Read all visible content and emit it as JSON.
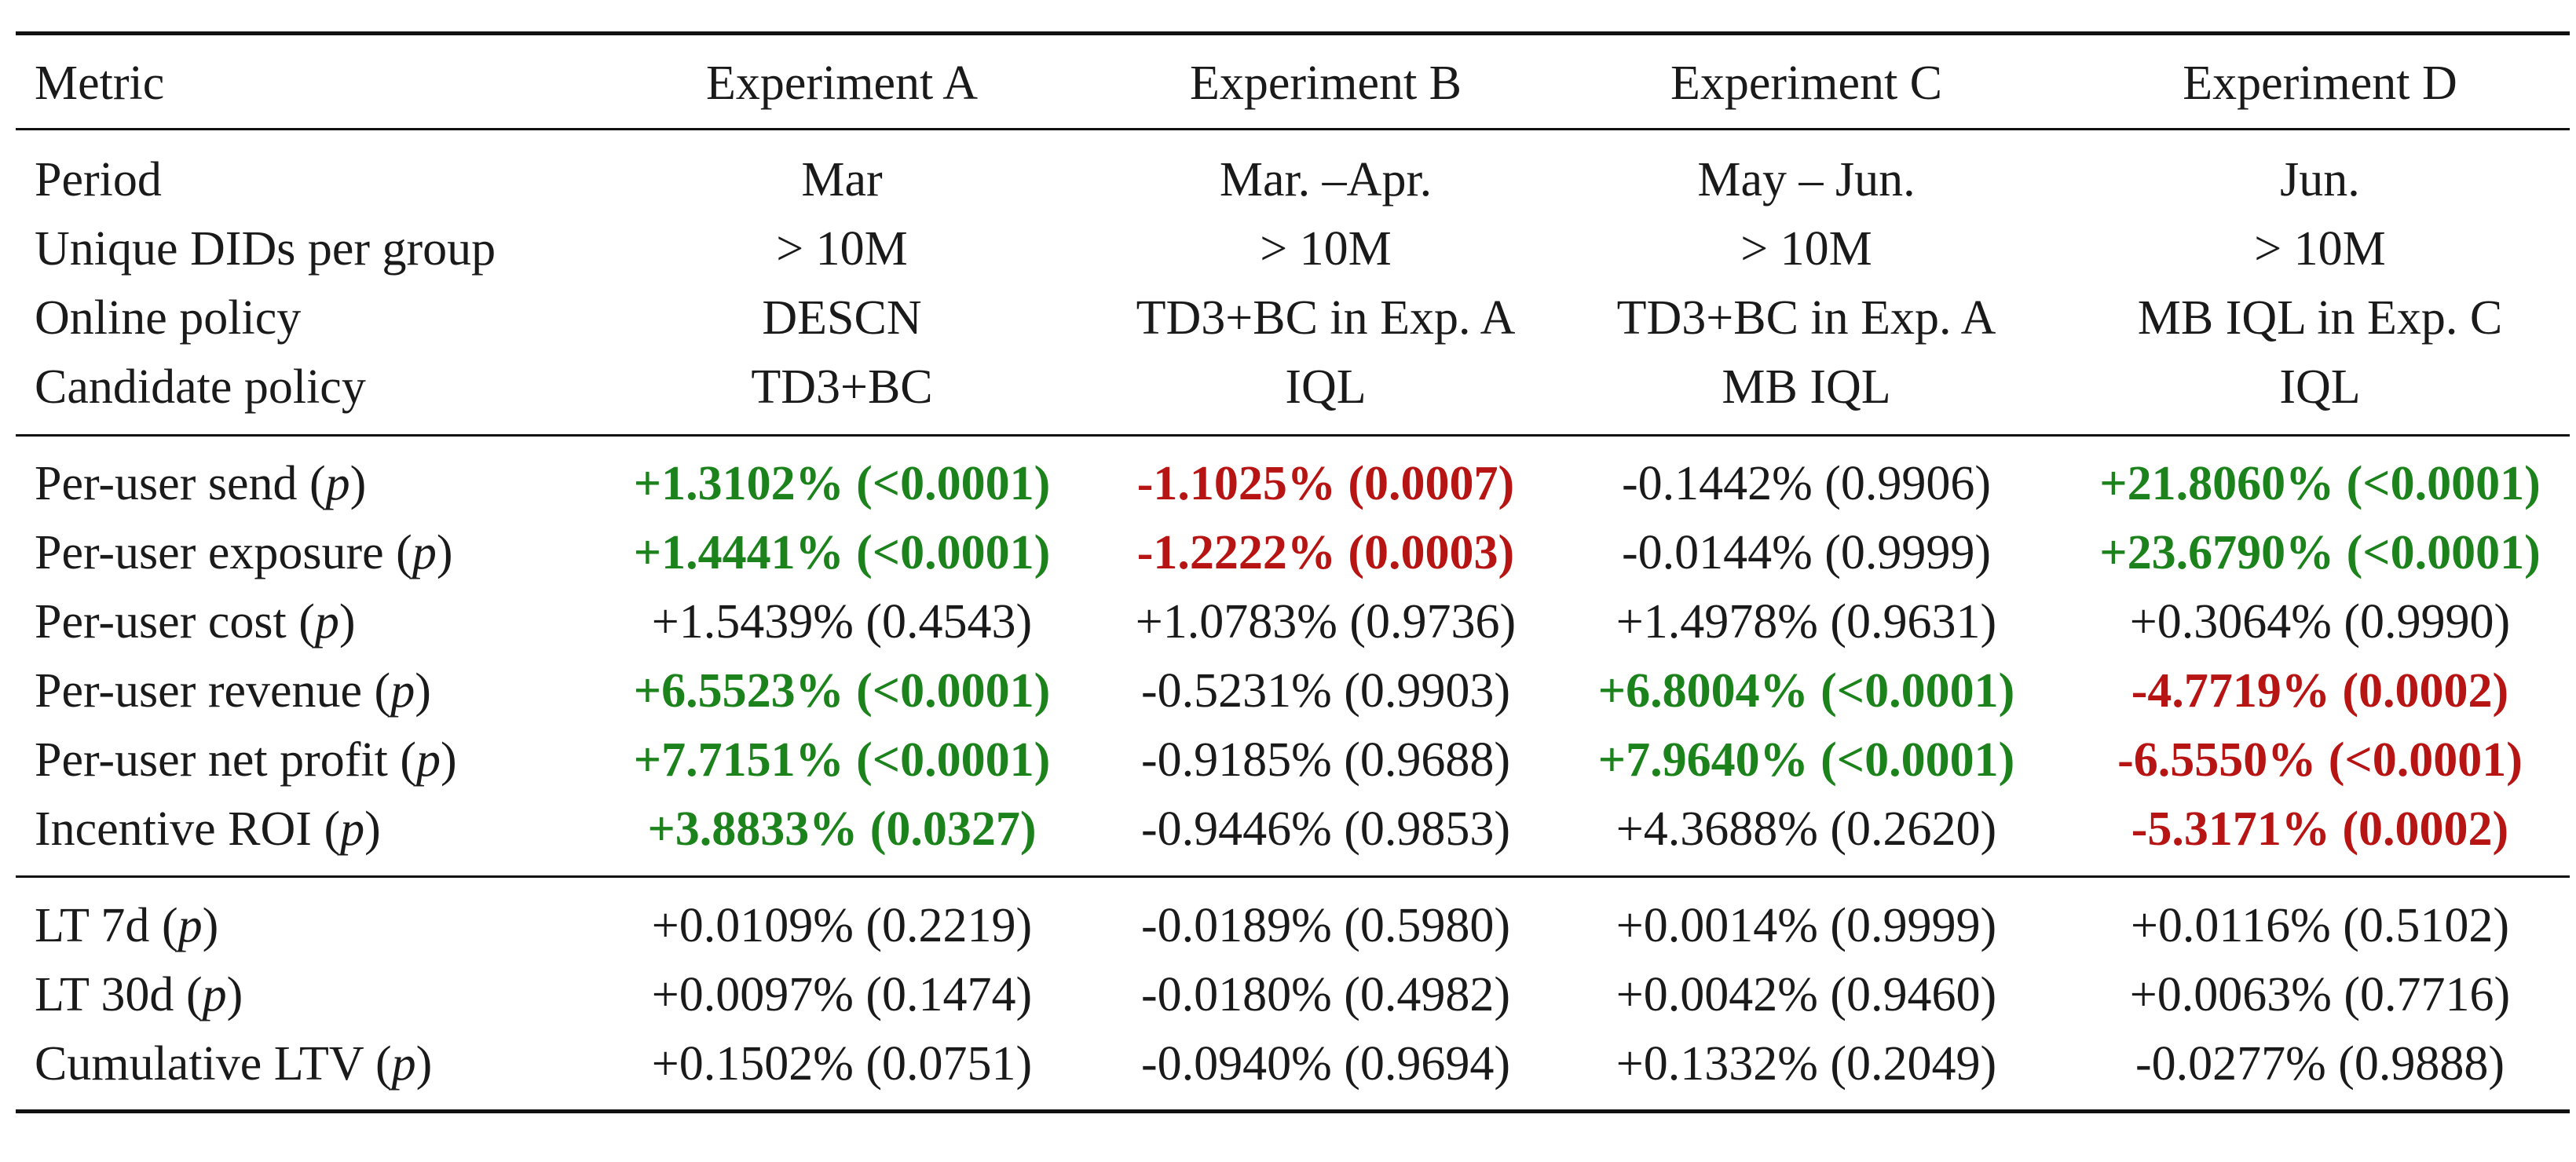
{
  "header": {
    "metric": "Metric",
    "columns": [
      "Experiment A",
      "Experiment B",
      "Experiment C",
      "Experiment D"
    ]
  },
  "setup": [
    {
      "label": "Period",
      "values": [
        "Mar",
        "Mar. –Apr.",
        "May – Jun.",
        "Jun."
      ]
    },
    {
      "label": "Unique DIDs per group",
      "values": [
        "> 10M",
        "> 10M",
        "> 10M",
        "> 10M"
      ]
    },
    {
      "label": "Online policy",
      "values": [
        "DESCN",
        "TD3+BC in Exp. A",
        "TD3+BC in Exp. A",
        "MB IQL in Exp. C"
      ]
    },
    {
      "label": "Candidate policy",
      "values": [
        "TD3+BC",
        "IQL",
        "MB IQL",
        "IQL"
      ]
    }
  ],
  "short_term": [
    {
      "label": "Per-user send",
      "p": "p",
      "cells": [
        {
          "text": "+1.3102% (<0.0001)",
          "status": "pos"
        },
        {
          "text": "-1.1025% (0.0007)",
          "status": "neg"
        },
        {
          "text": "-0.1442% (0.9906)",
          "status": "neu"
        },
        {
          "text": "+21.8060% (<0.0001)",
          "status": "pos"
        }
      ]
    },
    {
      "label": "Per-user exposure",
      "p": "p",
      "cells": [
        {
          "text": "+1.4441% (<0.0001)",
          "status": "pos"
        },
        {
          "text": "-1.2222% (0.0003)",
          "status": "neg"
        },
        {
          "text": "-0.0144% (0.9999)",
          "status": "neu"
        },
        {
          "text": "+23.6790% (<0.0001)",
          "status": "pos"
        }
      ]
    },
    {
      "label": "Per-user cost",
      "p": "p",
      "cells": [
        {
          "text": "+1.5439% (0.4543)",
          "status": "neu"
        },
        {
          "text": "+1.0783% (0.9736)",
          "status": "neu"
        },
        {
          "text": "+1.4978% (0.9631)",
          "status": "neu"
        },
        {
          "text": "+0.3064% (0.9990)",
          "status": "neu"
        }
      ]
    },
    {
      "label": "Per-user revenue",
      "p": "p",
      "cells": [
        {
          "text": "+6.5523% (<0.0001)",
          "status": "pos"
        },
        {
          "text": "-0.5231% (0.9903)",
          "status": "neu"
        },
        {
          "text": "+6.8004% (<0.0001)",
          "status": "pos"
        },
        {
          "text": "-4.7719% (0.0002)",
          "status": "neg"
        }
      ]
    },
    {
      "label": "Per-user net profit",
      "p": "p",
      "cells": [
        {
          "text": "+7.7151% (<0.0001)",
          "status": "pos"
        },
        {
          "text": "-0.9185% (0.9688)",
          "status": "neu"
        },
        {
          "text": "+7.9640% (<0.0001)",
          "status": "pos"
        },
        {
          "text": "-6.5550% (<0.0001)",
          "status": "neg"
        }
      ]
    },
    {
      "label": "Incentive ROI",
      "p": "p",
      "cells": [
        {
          "text": "+3.8833% (0.0327)",
          "status": "pos"
        },
        {
          "text": "-0.9446% (0.9853)",
          "status": "neu"
        },
        {
          "text": "+4.3688% (0.2620)",
          "status": "neu"
        },
        {
          "text": "-5.3171% (0.0002)",
          "status": "neg"
        }
      ]
    }
  ],
  "long_term": [
    {
      "label": "LT 7d",
      "p": "p",
      "cells": [
        {
          "text": "+0.0109% (0.2219)",
          "status": "neu"
        },
        {
          "text": "-0.0189% (0.5980)",
          "status": "neu"
        },
        {
          "text": "+0.0014% (0.9999)",
          "status": "neu"
        },
        {
          "text": "+0.0116% (0.5102)",
          "status": "neu"
        }
      ]
    },
    {
      "label": "LT 30d",
      "p": "p",
      "cells": [
        {
          "text": "+0.0097% (0.1474)",
          "status": "neu"
        },
        {
          "text": "-0.0180% (0.4982)",
          "status": "neu"
        },
        {
          "text": "+0.0042% (0.9460)",
          "status": "neu"
        },
        {
          "text": "+0.0063% (0.7716)",
          "status": "neu"
        }
      ]
    },
    {
      "label": "Cumulative LTV",
      "p": "p",
      "cells": [
        {
          "text": "+0.1502% (0.0751)",
          "status": "neu"
        },
        {
          "text": "-0.0940% (0.9694)",
          "status": "neu"
        },
        {
          "text": "+0.1332% (0.2049)",
          "status": "neu"
        },
        {
          "text": "-0.0277% (0.9888)",
          "status": "neu"
        }
      ]
    }
  ],
  "colors": {
    "positive": "#1c821c",
    "negative": "#b71414",
    "neutral": "#1a1a1a"
  }
}
